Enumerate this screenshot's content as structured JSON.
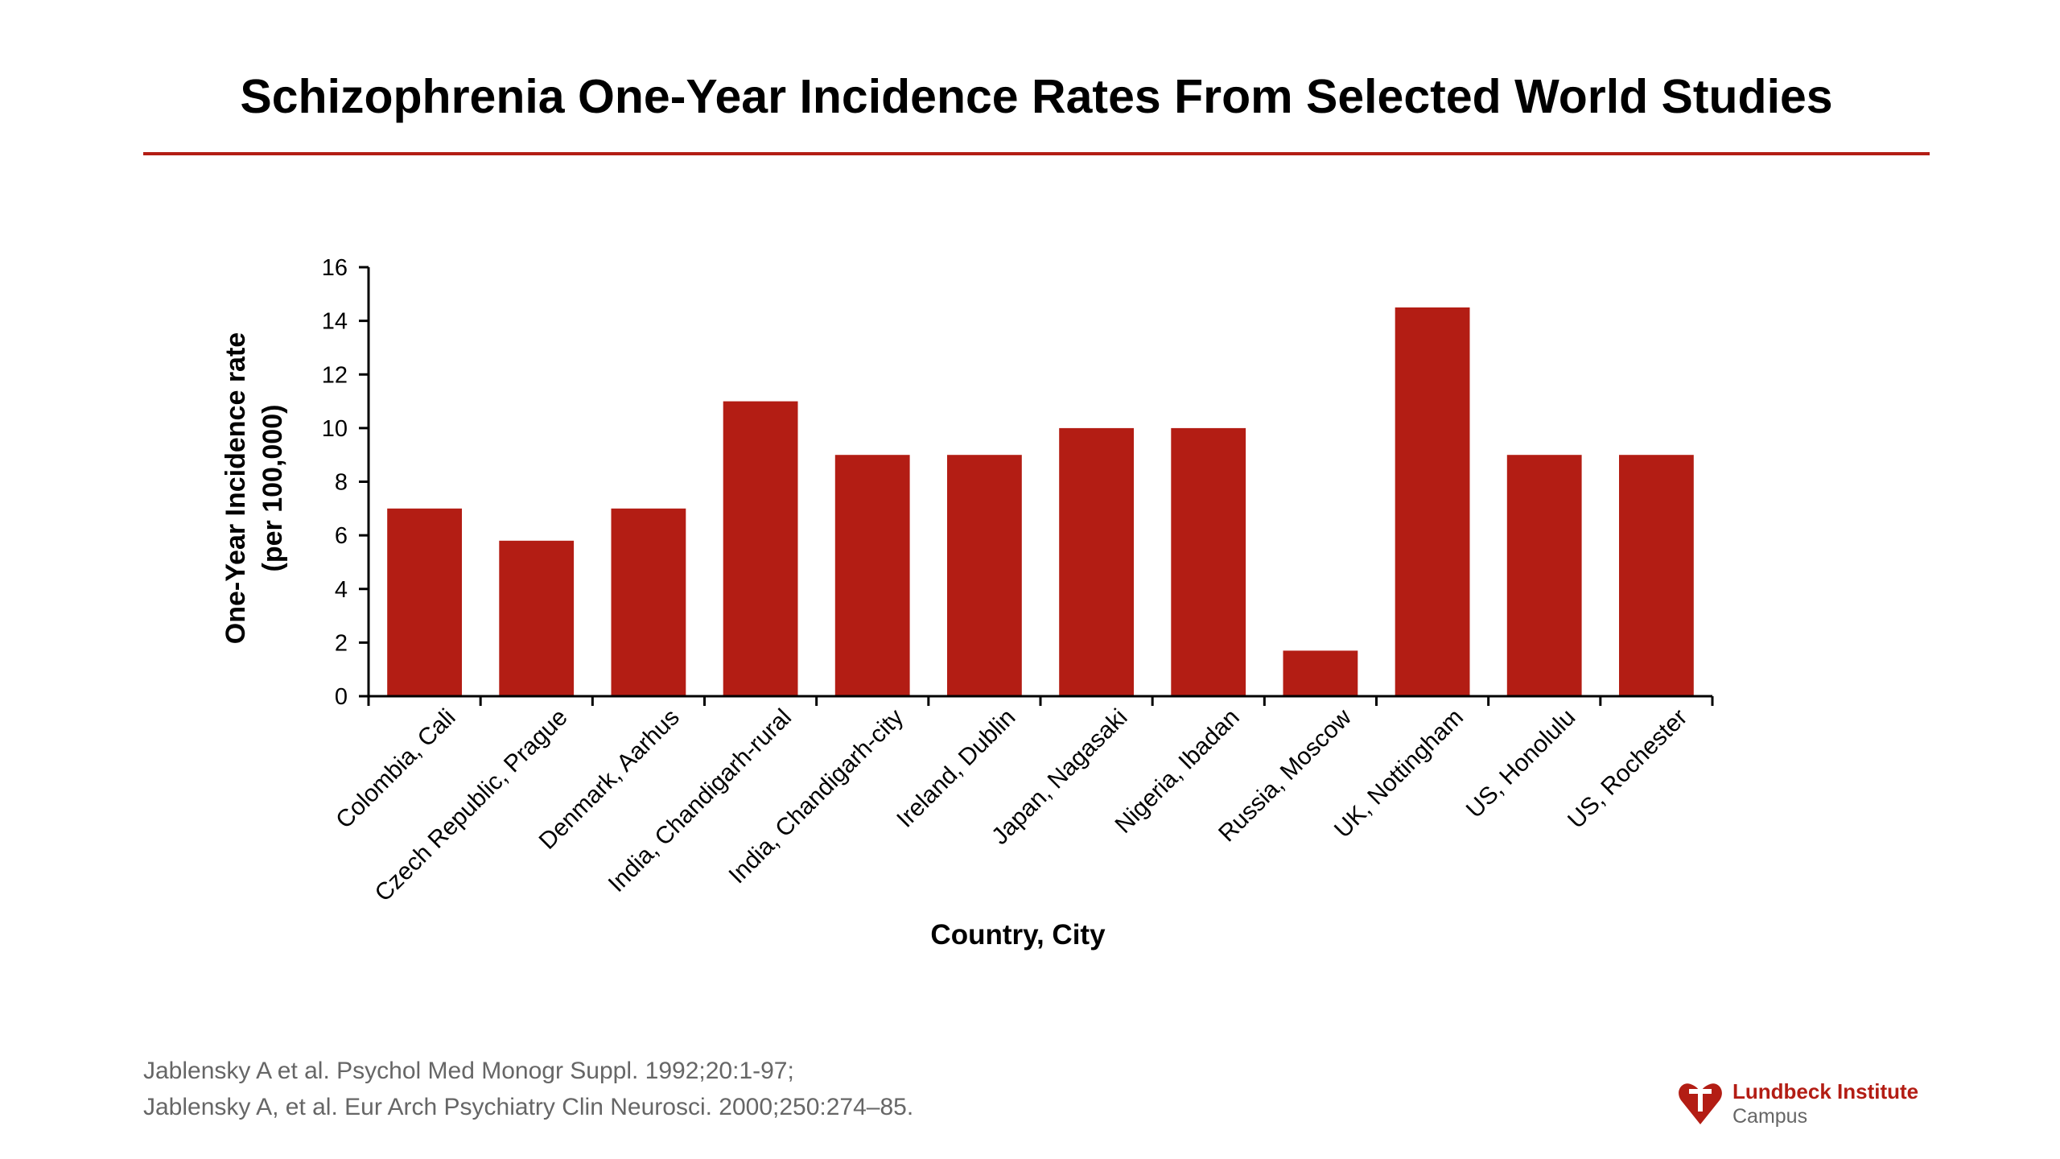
{
  "slide": {
    "title": "Schizophrenia One-Year Incidence Rates From Selected World Studies"
  },
  "chart_data": {
    "type": "bar",
    "title": "",
    "xlabel": "Country, City",
    "ylabel_lines": [
      "One-Year Incidence rate",
      "(per 100,000)"
    ],
    "ylim": [
      0,
      16
    ],
    "yticks": [
      0,
      2,
      4,
      6,
      8,
      10,
      12,
      14,
      16
    ],
    "grid": false,
    "legend": "none",
    "bar_color": "#b31d14",
    "categories": [
      "Colombia, Cali",
      "Czech Republic, Prague",
      "Denmark, Aarhus",
      "India, Chandigarh-rural",
      "India, Chandigarh-city",
      "Ireland, Dublin",
      "Japan, Nagasaki",
      "Nigeria, Ibadan",
      "Russia, Moscow",
      "UK, Nottingham",
      "US, Honolulu",
      "US, Rochester"
    ],
    "values": [
      7,
      5.8,
      7,
      11,
      9,
      9,
      10,
      10,
      1.7,
      14.5,
      9,
      9
    ]
  },
  "references": {
    "line1": "Jablensky A et al. Psychol Med Monogr Suppl. 1992;20:1-97;",
    "line2": "Jablensky A, et al. Eur Arch Psychiatry Clin Neurosci. 2000;250:274–85."
  },
  "logo": {
    "name": "Lundbeck Institute",
    "sub": "Campus",
    "icon": "lundbeck-heart-icon",
    "color": "#b31d14"
  }
}
